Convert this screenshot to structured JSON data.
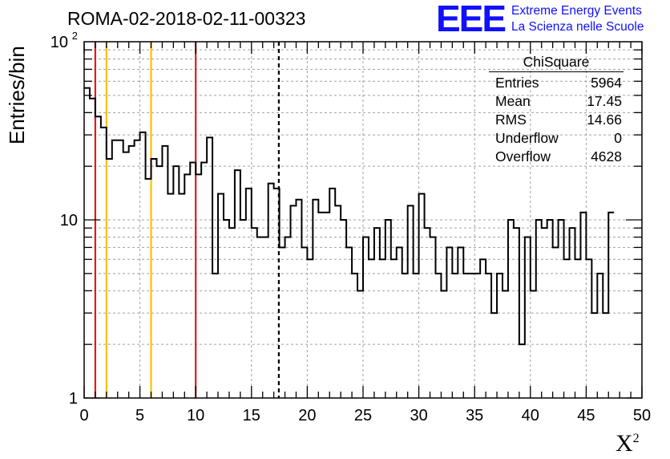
{
  "title": "ROMA-02-2018-02-11-00323",
  "logo": {
    "mark": "EEE",
    "line1": "Extreme Energy Events",
    "line2": "La Scienza nelle Scuole",
    "color": "#1010ff"
  },
  "stats_box": {
    "title": "ChiSquare",
    "rows": [
      {
        "label": "Entries",
        "value": "5964"
      },
      {
        "label": "Mean",
        "value": "17.45"
      },
      {
        "label": "RMS",
        "value": "14.66"
      },
      {
        "label": "Underflow",
        "value": "0"
      },
      {
        "label": "Overflow",
        "value": "4628"
      }
    ]
  },
  "chart_data": {
    "type": "histogram",
    "ylabel": "Entries/bin",
    "xlabel": "X",
    "xlabel_sup": "2",
    "xlim": [
      0,
      50
    ],
    "ylim": [
      1,
      100
    ],
    "yscale": "log",
    "grid": true,
    "bin_width": 0.5,
    "xticks": [
      "0",
      "5",
      "10",
      "15",
      "20",
      "25",
      "30",
      "35",
      "40",
      "45",
      "50"
    ],
    "yticks": [
      {
        "value": 1,
        "label": "1"
      },
      {
        "value": 10,
        "label": "10"
      },
      {
        "value": 100,
        "label": "10",
        "sup": "2"
      }
    ],
    "values": [
      55,
      48,
      38,
      33,
      22,
      28,
      28,
      24,
      26,
      28,
      31,
      17,
      22,
      20,
      26,
      14,
      20,
      14,
      18,
      21,
      18,
      21,
      29,
      5,
      14,
      10,
      9,
      19,
      10,
      15,
      9,
      8,
      8,
      16,
      15,
      7,
      8,
      12,
      13,
      7,
      6,
      13,
      11,
      11,
      15,
      12,
      10,
      7,
      5,
      4,
      8,
      6,
      9,
      6,
      10,
      6,
      7,
      5,
      12,
      5,
      14,
      9,
      8,
      5,
      4,
      7,
      5,
      7,
      5,
      5,
      5,
      6,
      5,
      3,
      5,
      4,
      10,
      9,
      2,
      8,
      4,
      10,
      9,
      10,
      7,
      10,
      6,
      9,
      6,
      11,
      6,
      3,
      5,
      3,
      11
    ],
    "vertical_lines": [
      {
        "x": 1,
        "color": "#e41a1c",
        "style": "solid"
      },
      {
        "x": 2,
        "color": "#ffbf00",
        "style": "solid"
      },
      {
        "x": 6,
        "color": "#ffbf00",
        "style": "solid"
      },
      {
        "x": 10,
        "color": "#e41a1c",
        "style": "solid"
      },
      {
        "x": 17.45,
        "color": "#000000",
        "style": "dashed"
      }
    ]
  }
}
